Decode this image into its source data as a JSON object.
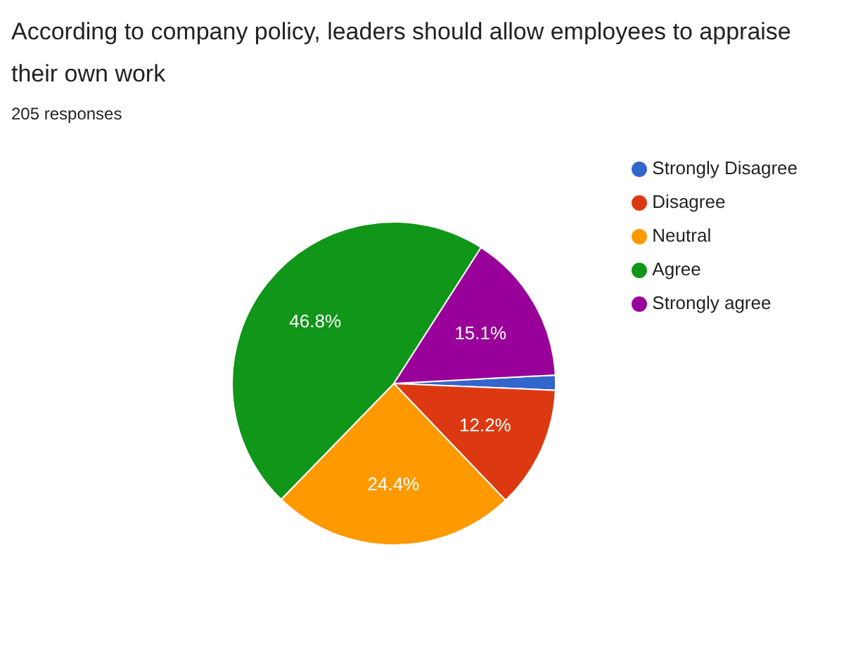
{
  "chart_data": {
    "type": "pie",
    "title": "According to company policy, leaders should allow employees to appraise their own work",
    "subtitle": "205 responses",
    "categories": [
      "Strongly Disagree",
      "Disagree",
      "Neutral",
      "Agree",
      "Strongly agree"
    ],
    "values": [
      1.5,
      12.2,
      24.4,
      46.8,
      15.1
    ],
    "value_labels": [
      null,
      "12.2%",
      "24.4%",
      "46.8%",
      "15.1%"
    ],
    "colors": [
      "#3366cc",
      "#dc3912",
      "#ff9900",
      "#109618",
      "#990099"
    ],
    "legend": "right"
  }
}
